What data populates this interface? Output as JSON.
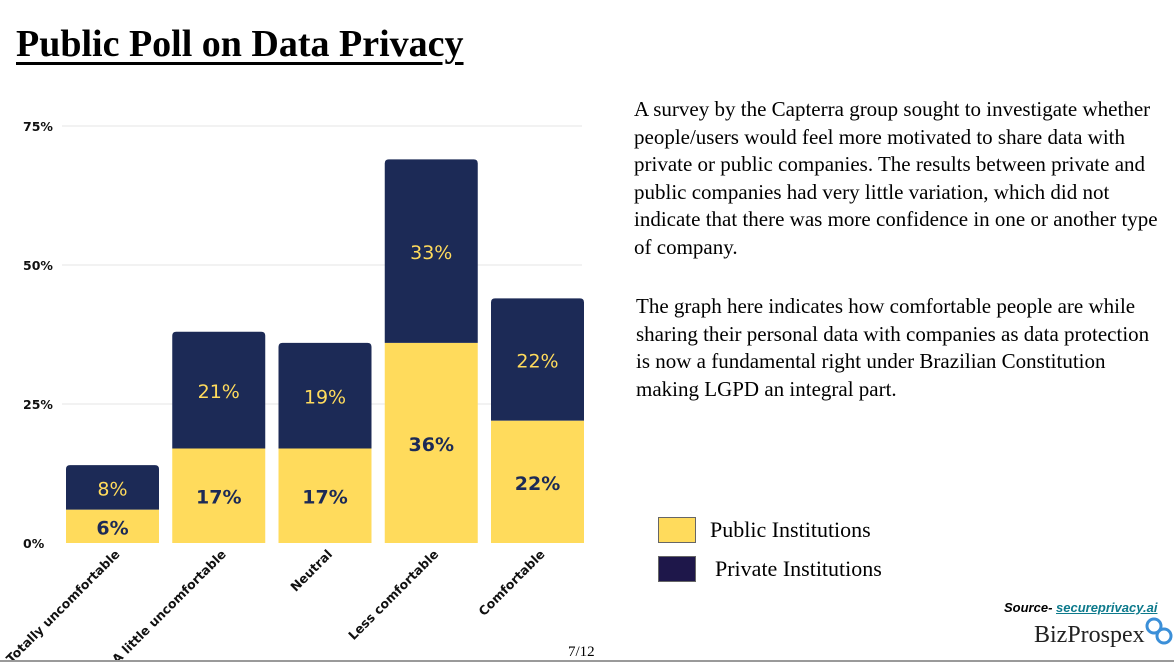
{
  "page": {
    "title": "Public Poll on Data Privacy",
    "page_number": "7/12"
  },
  "text": {
    "paragraph1": "A survey by the Capterra group sought to investigate whether people/users would feel more motivated to share data with private or public companies. The results between private and public companies had very little variation, which did not indicate that there was more confidence in one or another type of company.",
    "paragraph2": "The graph here indicates how comfortable people are while sharing their personal data with companies as data protection is now a fundamental right under Brazilian Constitution making LGPD an integral part."
  },
  "legend": {
    "public_label": "Public Institutions",
    "private_label": "Private Institutions"
  },
  "source": {
    "prefix": "Source- ",
    "link": "secureprivacy.ai"
  },
  "logo": {
    "text": "BizProspex"
  },
  "colors": {
    "public": "#FFDB5C",
    "private": "#1C2A56",
    "legend_private": "#1E174A",
    "source_link": "#0d7a8c"
  },
  "chart_data": {
    "type": "bar",
    "stacked": true,
    "categories": [
      "Totally uncomfortable",
      "A little uncomfortable",
      "Neutral",
      "Less comfortable",
      "Comfortable"
    ],
    "series": [
      {
        "name": "Public Institutions",
        "values": [
          6,
          17,
          17,
          36,
          22
        ],
        "labels": [
          "6%",
          "17%",
          "17%",
          "36%",
          "22%"
        ]
      },
      {
        "name": "Private Institutions",
        "values": [
          8,
          21,
          19,
          33,
          22
        ],
        "labels": [
          "8%",
          "21%",
          "19%",
          "33%",
          "22%"
        ]
      }
    ],
    "yticks": [
      "0%",
      "25%",
      "50%",
      "75%"
    ],
    "ytick_values": [
      0,
      25,
      50,
      75
    ],
    "ylim": [
      0,
      75
    ],
    "grid": true,
    "title": "",
    "xlabel": "",
    "ylabel": ""
  }
}
